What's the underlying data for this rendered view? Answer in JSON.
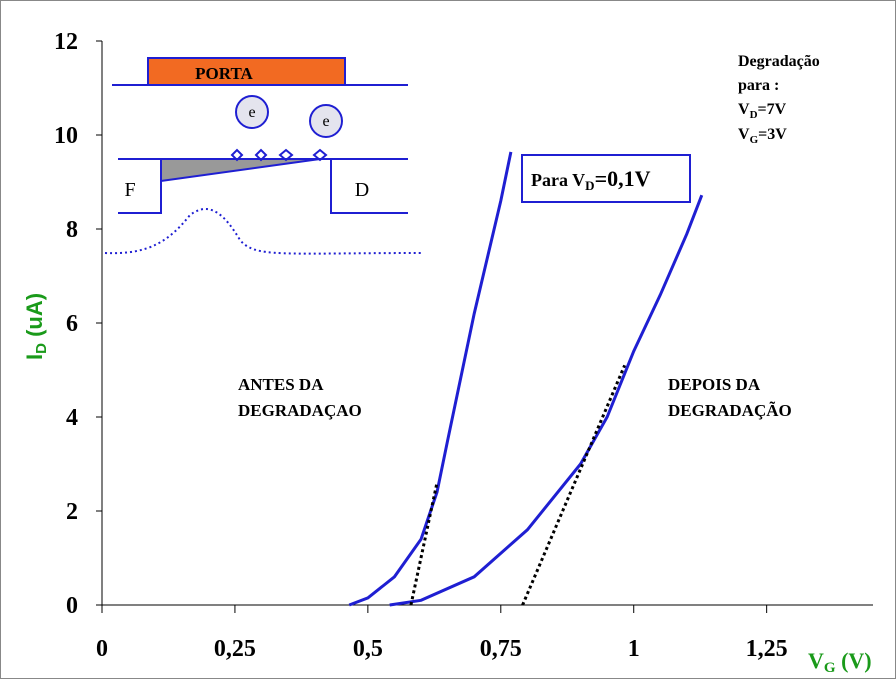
{
  "chart_data": {
    "type": "line",
    "xlim": [
      0,
      1.45
    ],
    "ylim": [
      0,
      12
    ],
    "xticks": [
      0,
      {
        "value": 0.25,
        "label": "0,25"
      },
      {
        "value": 0.5,
        "label": "0,5"
      },
      {
        "value": 0.75,
        "label": "0,75"
      },
      1,
      {
        "value": 1.25,
        "label": "1,25"
      }
    ],
    "yticks": [
      0,
      2,
      4,
      6,
      8,
      10,
      12
    ],
    "x_label": [
      "V",
      "G",
      " (V)"
    ],
    "y_label": [
      "I",
      "D",
      " (uA)"
    ],
    "series": [
      {
        "color": "#1f1fd2",
        "style": "solid",
        "x": [
          0.465,
          0.5,
          0.55,
          0.6,
          0.63,
          0.65,
          0.7,
          0.75,
          0.769
        ],
        "values": [
          0,
          0.15,
          0.6,
          1.4,
          2.4,
          3.5,
          6.2,
          8.6,
          9.64
        ]
      },
      {
        "color": "#1f1fd2",
        "style": "solid",
        "x": [
          0.541,
          0.6,
          0.7,
          0.8,
          0.9,
          0.95,
          1.0,
          1.05,
          1.1,
          1.128
        ],
        "values": [
          0,
          0.1,
          0.6,
          1.6,
          3.0,
          4.0,
          5.4,
          6.6,
          7.9,
          8.72
        ]
      },
      {
        "color": "#000000",
        "style": "dotted",
        "x": [
          0.581,
          0.63
        ],
        "values": [
          0,
          2.6
        ]
      },
      {
        "color": "#000000",
        "style": "dotted",
        "x": [
          0.791,
          0.983
        ],
        "values": [
          0,
          5.1
        ]
      }
    ],
    "annotations": [
      [
        "ANTES DA",
        "DEGRADAÇAO"
      ],
      [
        "DEPOIS DA",
        "DEGRADAÇÃO"
      ]
    ],
    "legend_label": [
      "Para V",
      "D",
      "=0,1V"
    ],
    "note": {
      "lines": [
        "Degradação",
        "para :"
      ],
      "vd": [
        "V",
        "D",
        "=7V"
      ],
      "vg": [
        "V",
        "G",
        "=3V"
      ]
    },
    "inset": {
      "gate": "PORTA",
      "electrons": [
        "e",
        "e"
      ],
      "source": "F",
      "drain": "D"
    }
  }
}
